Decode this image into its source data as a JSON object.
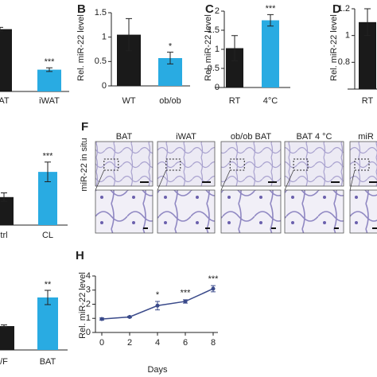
{
  "chart_data": [
    {
      "type": "bar",
      "categories": [
        "WAT",
        "iWAT"
      ],
      "values": [
        1,
        0.35
      ],
      "errors": [
        0.03,
        0.03
      ],
      "colors": [
        "#1a1a1a",
        "#29abe2"
      ],
      "annotations": [
        null,
        "***"
      ],
      "ylim": [
        0,
        1.2
      ]
    },
    {
      "type": "bar",
      "panel_label": "B",
      "ylabel": "Rel. miR-22 level",
      "categories": [
        "WT",
        "ob/ob"
      ],
      "values": [
        1.05,
        0.57
      ],
      "errors": [
        0.33,
        0.12
      ],
      "colors": [
        "#1a1a1a",
        "#29abe2"
      ],
      "annotations": [
        null,
        "*"
      ],
      "ylim": [
        0,
        1.5
      ],
      "yticks": [
        0,
        0.5,
        1,
        1.5
      ]
    },
    {
      "type": "bar",
      "panel_label": "C",
      "ylabel": "Rel. miR-22 level",
      "categories": [
        "RT",
        "4°C"
      ],
      "values": [
        1.03,
        1.76
      ],
      "errors": [
        0.33,
        0.15
      ],
      "colors": [
        "#1a1a1a",
        "#29abe2"
      ],
      "annotations": [
        null,
        "***"
      ],
      "ylim": [
        0,
        2
      ],
      "yticks": [
        0,
        0.5,
        1,
        1.5,
        2
      ]
    },
    {
      "type": "bar",
      "panel_label": "D",
      "ylabel": "Rel. miR-22 level",
      "categories": [
        "RT"
      ],
      "values": [
        1.1
      ],
      "errors": [
        0.1
      ],
      "colors": [
        "#1a1a1a"
      ],
      "annotations": [
        null
      ],
      "ylim": [
        0.6,
        1.2
      ],
      "yticks": [
        0.8,
        1,
        1.2
      ]
    },
    {
      "type": "bar",
      "categories": [
        "trl",
        "CL"
      ],
      "values": [
        1,
        1.9
      ],
      "errors": [
        0.15,
        0.35
      ],
      "colors": [
        "#1a1a1a",
        "#29abe2"
      ],
      "annotations": [
        null,
        "***"
      ],
      "ylim": [
        0,
        2.5
      ]
    },
    {
      "type": "bar",
      "categories": [
        "/F",
        "BAT"
      ],
      "values": [
        1,
        2.2
      ],
      "errors": [
        0.05,
        0.3
      ],
      "colors": [
        "#1a1a1a",
        "#29abe2"
      ],
      "annotations": [
        null,
        "**"
      ],
      "ylim": [
        0,
        3
      ]
    },
    {
      "type": "line",
      "panel_label": "H",
      "ylabel": "Rel. miR-22 level",
      "xlabel": "Days",
      "x": [
        0,
        2,
        4,
        6,
        8
      ],
      "values": [
        0.95,
        1.1,
        1.9,
        2.2,
        3.1
      ],
      "errors": [
        0.08,
        0.05,
        0.3,
        0.12,
        0.22
      ],
      "annotations": [
        null,
        null,
        "*",
        "***",
        "***"
      ],
      "color": "#3a4a8a",
      "xlim": [
        0,
        8
      ],
      "xticks": [
        0,
        2,
        4,
        6,
        8
      ],
      "ylim": [
        0,
        4
      ],
      "yticks": [
        0,
        1,
        2,
        3,
        4
      ]
    }
  ],
  "panel_f": {
    "panel_label": "F",
    "row_label": "miR-22 in situ",
    "columns": [
      "BAT",
      "iWAT",
      "ob/ob BAT",
      "BAT 4 °C",
      "miR"
    ]
  }
}
